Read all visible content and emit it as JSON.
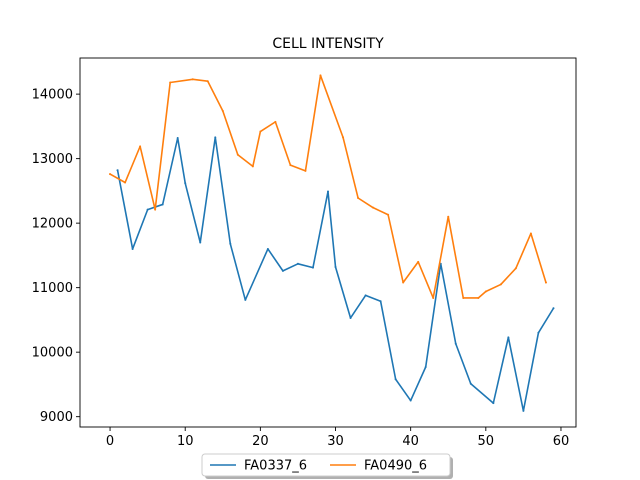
{
  "chart_data": {
    "type": "line",
    "title": "CELL INTENSITY",
    "xlabel": "",
    "ylabel": "",
    "xlim": [
      -4,
      62
    ],
    "ylim": [
      8840,
      14560
    ],
    "xticks": [
      0,
      10,
      20,
      30,
      40,
      50,
      60
    ],
    "yticks": [
      9000,
      10000,
      11000,
      12000,
      13000,
      14000
    ],
    "grid": false,
    "legend_position": "bottom-center",
    "series": [
      {
        "name": "FA0337_6",
        "color": "#1f77b4",
        "x": [
          1,
          3,
          5,
          7,
          9,
          10,
          12,
          14,
          16,
          18,
          21,
          23,
          25,
          27,
          29,
          30,
          32,
          34,
          36,
          38,
          40,
          42,
          44,
          46,
          48,
          51,
          53,
          55,
          57,
          59
        ],
        "y": [
          12820,
          11600,
          12210,
          12290,
          13320,
          12620,
          11700,
          13330,
          11680,
          10810,
          11600,
          11260,
          11370,
          11310,
          12490,
          11320,
          10530,
          10880,
          10790,
          9580,
          9250,
          9770,
          11370,
          10130,
          9510,
          9210,
          10230,
          9090,
          10300,
          10680
        ]
      },
      {
        "name": "FA0490_6",
        "color": "#ff7f0e",
        "x": [
          0,
          2,
          4,
          6,
          8,
          11,
          13,
          15,
          17,
          19,
          20,
          22,
          24,
          26,
          28,
          31,
          33,
          35,
          37,
          39,
          41,
          43,
          45,
          47,
          49,
          50,
          52,
          54,
          56,
          58
        ],
        "y": [
          12760,
          12630,
          13190,
          12210,
          14180,
          14230,
          14200,
          13740,
          13060,
          12880,
          13420,
          13570,
          12900,
          12810,
          14290,
          13330,
          12390,
          12240,
          12130,
          11080,
          11400,
          10840,
          12100,
          10840,
          10840,
          10940,
          11050,
          11300,
          11840,
          11080
        ]
      }
    ]
  }
}
